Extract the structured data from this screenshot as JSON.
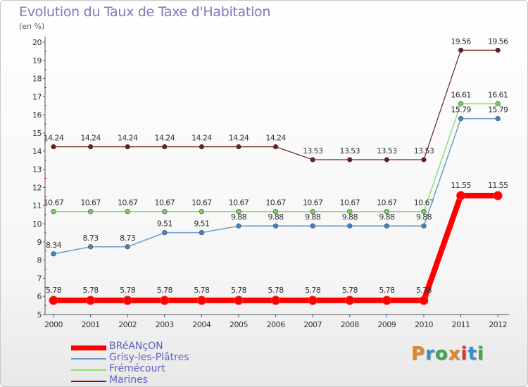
{
  "header": {
    "title": "Evolution du Taux de Taxe d'Habitation",
    "unit": "(en %)"
  },
  "brand": {
    "text": "Proxiti",
    "colors": [
      "#e0872a",
      "#3a8fd4",
      "#3aa84a",
      "#e0872a",
      "#d23a3a",
      "#3a8fd4",
      "#3aa84a"
    ]
  },
  "chart_data": {
    "type": "line",
    "title": "Evolution du Taux de Taxe d'Habitation",
    "ylabel": "(en %)",
    "xlabel": "",
    "x": [
      "2000",
      "2001",
      "2002",
      "2003",
      "2004",
      "2005",
      "2006",
      "2007",
      "2008",
      "2009",
      "2010",
      "2011",
      "2012"
    ],
    "ylim": [
      5,
      20
    ],
    "yticks": [
      5,
      6,
      7,
      8,
      9,
      10,
      11,
      12,
      13,
      14,
      15,
      16,
      17,
      18,
      19,
      20
    ],
    "grid": false,
    "legend_position": "bottom",
    "series": [
      {
        "name": "Marines",
        "color": "#6e1c1c",
        "marker": "#6e1c1c",
        "width": 1.2,
        "values": [
          14.24,
          14.24,
          14.24,
          14.24,
          14.24,
          14.24,
          14.24,
          13.53,
          13.53,
          13.53,
          13.53,
          19.56,
          19.56
        ],
        "labels": [
          "14.24",
          "14.24",
          "14.24",
          "14.24",
          "14.24",
          "14.24",
          "14.24",
          "13.53",
          "13.53",
          "13.53",
          "13.53",
          "19.56",
          "19.56"
        ]
      },
      {
        "name": "Frémécourt",
        "color": "#8ee06e",
        "marker": "#7ad05a",
        "width": 1.5,
        "values": [
          10.67,
          10.67,
          10.67,
          10.67,
          10.67,
          10.67,
          10.67,
          10.67,
          10.67,
          10.67,
          10.67,
          16.61,
          16.61
        ],
        "labels": [
          "10.67",
          "10.67",
          "10.67",
          "10.67",
          "10.67",
          "10.67",
          "10.67",
          "10.67",
          "10.67",
          "10.67",
          "10.67",
          "16.61",
          "16.61"
        ]
      },
      {
        "name": "Grisy-les-Plâtres",
        "color": "#6c9ccc",
        "marker": "#3f86c8",
        "width": 1.5,
        "values": [
          8.34,
          8.73,
          8.73,
          9.51,
          9.51,
          9.88,
          9.88,
          9.88,
          9.88,
          9.88,
          9.88,
          15.79,
          15.79
        ],
        "labels": [
          "8.34",
          "8.73",
          "8.73",
          "9.51",
          "9.51",
          "9.88",
          "9.88",
          "9.88",
          "9.88",
          "9.88",
          "9.88",
          "15.79",
          "15.79"
        ]
      },
      {
        "name": "BRéANçON",
        "color": "#ff0000",
        "marker": "#ff0000",
        "width": 8,
        "values": [
          5.78,
          5.78,
          5.78,
          5.78,
          5.78,
          5.78,
          5.78,
          5.78,
          5.78,
          5.78,
          5.78,
          11.55,
          11.55
        ],
        "labels": [
          "5.78",
          "5.78",
          "5.78",
          "5.78",
          "5.78",
          "5.78",
          "5.78",
          "5.78",
          "5.78",
          "5.78",
          "5.78",
          "11.55",
          "11.55"
        ]
      }
    ],
    "legend_order": [
      "BRéANçON",
      "Grisy-les-Plâtres",
      "Frémécourt",
      "Marines"
    ]
  }
}
